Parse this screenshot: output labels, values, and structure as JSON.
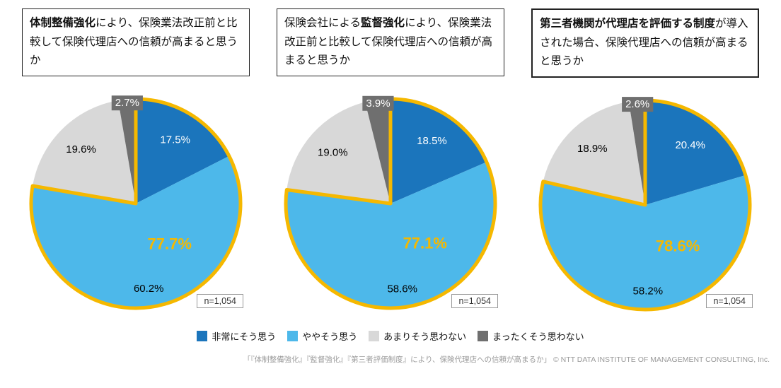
{
  "colors": {
    "slices": [
      "#1b75bc",
      "#4db8ea",
      "#d8d8d8",
      "#6f6f6f"
    ],
    "highlight": "#f5b800",
    "slice_label_white": "#ffffff",
    "slice_label_black": "#000000"
  },
  "legend": {
    "items": [
      {
        "label": "非常にそう思う",
        "color": "#1b75bc"
      },
      {
        "label": "ややそう思う",
        "color": "#4db8ea"
      },
      {
        "label": "あまりそう思わない",
        "color": "#d8d8d8"
      },
      {
        "label": "まったくそう思わない",
        "color": "#6f6f6f"
      }
    ]
  },
  "footer": {
    "text": "「『体制整備強化』『監督強化』『第三者評価制度』により、保険代理店への信頼が高まるか」 © NTT DATA INSTITUTE OF MANAGEMENT CONSULTING, Inc."
  },
  "chart_data": [
    {
      "type": "pie",
      "title_segments": [
        {
          "text": "体制整備強化",
          "bold": true
        },
        {
          "text": "により、保険業法改正前と比較して保険代理店への信頼が高まると思うか",
          "bold": false
        }
      ],
      "title_border_px": 1,
      "categories": [
        "非常にそう思う",
        "ややそう思う",
        "あまりそう思わない",
        "まったくそう思わない"
      ],
      "values": [
        17.5,
        60.2,
        19.6,
        2.7
      ],
      "combined_highlight": {
        "label": "77.7%",
        "covers": [
          "非常にそう思う",
          "ややそう思う"
        ]
      },
      "n_label": "n=1,054",
      "start_angle_deg": -90,
      "direction": "clockwise",
      "legend_position": "bottom-shared"
    },
    {
      "type": "pie",
      "title_segments": [
        {
          "text": "保険会社による",
          "bold": false
        },
        {
          "text": "監督強化",
          "bold": true
        },
        {
          "text": "により、保険業法改正前と比較して保険代理店への信頼が高まると思うか",
          "bold": false
        }
      ],
      "title_border_px": 1,
      "categories": [
        "非常にそう思う",
        "ややそう思う",
        "あまりそう思わない",
        "まったくそう思わない"
      ],
      "values": [
        18.5,
        58.6,
        19.0,
        3.9
      ],
      "combined_highlight": {
        "label": "77.1%",
        "covers": [
          "非常にそう思う",
          "ややそう思う"
        ]
      },
      "n_label": "n=1,054",
      "start_angle_deg": -90,
      "direction": "clockwise",
      "legend_position": "bottom-shared"
    },
    {
      "type": "pie",
      "title_segments": [
        {
          "text": "第三者機関が代理店を評価する制度",
          "bold": true
        },
        {
          "text": "が導入された場合、保険代理店への信頼が高まると思うか",
          "bold": false
        }
      ],
      "title_border_px": 2,
      "categories": [
        "非常にそう思う",
        "ややそう思う",
        "あまりそう思わない",
        "まったくそう思わない"
      ],
      "values": [
        20.4,
        58.2,
        18.9,
        2.6
      ],
      "combined_highlight": {
        "label": "78.6%",
        "covers": [
          "非常にそう思う",
          "ややそう思う"
        ]
      },
      "n_label": "n=1,054",
      "start_angle_deg": -90,
      "direction": "clockwise",
      "legend_position": "bottom-shared"
    }
  ]
}
